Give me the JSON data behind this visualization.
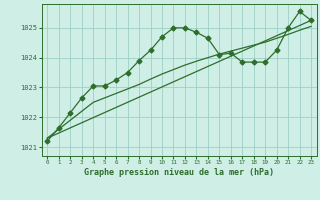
{
  "background_color": "#ceeee6",
  "grid_color": "#9dcfc5",
  "line_color": "#2d6e2d",
  "xlabel": "Graphe pression niveau de la mer (hPa)",
  "xlim": [
    -0.5,
    23.5
  ],
  "ylim": [
    1020.7,
    1025.8
  ],
  "yticks": [
    1021,
    1022,
    1023,
    1024,
    1025
  ],
  "xticks": [
    0,
    1,
    2,
    3,
    4,
    5,
    6,
    7,
    8,
    9,
    10,
    11,
    12,
    13,
    14,
    15,
    16,
    17,
    18,
    19,
    20,
    21,
    22,
    23
  ],
  "series1_x": [
    0,
    1,
    2,
    3,
    4,
    5,
    6,
    7,
    8,
    9,
    10,
    11,
    12,
    13,
    14,
    15,
    16,
    17,
    18,
    19,
    20,
    21,
    22,
    23
  ],
  "series1_y": [
    1021.2,
    1021.65,
    1022.15,
    1022.65,
    1023.05,
    1023.05,
    1023.25,
    1023.5,
    1023.9,
    1024.25,
    1024.7,
    1025.0,
    1025.0,
    1024.85,
    1024.65,
    1024.1,
    1024.15,
    1023.85,
    1023.85,
    1023.85,
    1024.25,
    1025.0,
    1025.55,
    1025.25
  ],
  "series2_x": [
    0,
    1,
    2,
    3,
    4,
    5,
    6,
    7,
    8,
    9,
    10,
    11,
    12,
    13,
    14,
    15,
    16,
    17,
    18,
    19,
    20,
    21,
    22,
    23
  ],
  "series2_y": [
    1021.3,
    1021.6,
    1021.9,
    1022.2,
    1022.5,
    1022.65,
    1022.8,
    1022.95,
    1023.1,
    1023.28,
    1023.45,
    1023.6,
    1023.75,
    1023.88,
    1024.0,
    1024.12,
    1024.22,
    1024.32,
    1024.42,
    1024.52,
    1024.65,
    1024.78,
    1024.92,
    1025.05
  ],
  "series3_x": [
    0,
    23
  ],
  "series3_y": [
    1021.3,
    1025.25
  ]
}
